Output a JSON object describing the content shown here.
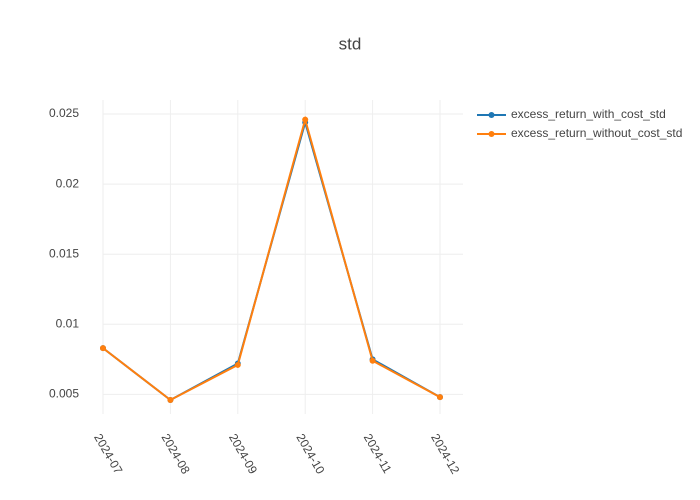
{
  "chart_data": {
    "type": "line",
    "title": "std",
    "categories": [
      "2024-07",
      "2024-08",
      "2024-09",
      "2024-10",
      "2024-11",
      "2024-12"
    ],
    "series": [
      {
        "name": "excess_return_with_cost_std",
        "color": "#1f77b4",
        "values": [
          0.0083,
          0.0046,
          0.0072,
          0.0244,
          0.0075,
          0.0048
        ]
      },
      {
        "name": "excess_return_without_cost_std",
        "color": "#ff7f0e",
        "values": [
          0.0083,
          0.0046,
          0.0071,
          0.0246,
          0.0074,
          0.0048
        ]
      }
    ],
    "ylim": [
      0.0036,
      0.026
    ],
    "yticks": [
      0.005,
      0.01,
      0.015,
      0.02,
      0.025
    ],
    "grid": true,
    "legend": "top-right"
  }
}
